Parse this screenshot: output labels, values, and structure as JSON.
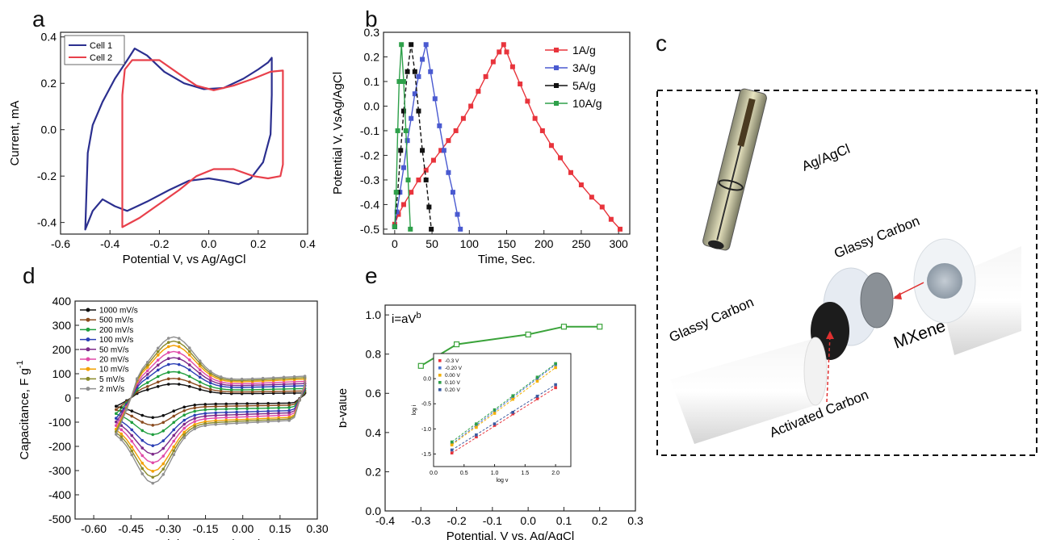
{
  "panel_letters": {
    "a": "a",
    "b": "b",
    "c": "c",
    "d": "d",
    "e": "e"
  },
  "chart_data": [
    {
      "panel": "a",
      "type": "line",
      "xlabel": "Potential V, vs Ag/AgCl",
      "ylabel": "Current, mA",
      "xlim": [
        -0.6,
        0.4
      ],
      "ylim": [
        -0.45,
        0.42
      ],
      "xticks": [
        -0.6,
        -0.4,
        -0.2,
        0.0,
        0.2,
        0.4
      ],
      "xtick_labels": [
        "-0.6",
        "-0.4",
        "-0.2",
        "0.0",
        "0.2",
        "0.4"
      ],
      "yticks": [
        -0.4,
        -0.2,
        0.0,
        0.2,
        0.4
      ],
      "ytick_labels": [
        "-0.4",
        "-0.2",
        "0.0",
        "0.2",
        "0.4"
      ],
      "legend_position": "top-left",
      "series": [
        {
          "name": "Cell 1",
          "color": "#2b2f8f",
          "points": [
            [
              -0.5,
              -0.43
            ],
            [
              -0.49,
              -0.1
            ],
            [
              -0.47,
              0.02
            ],
            [
              -0.43,
              0.12
            ],
            [
              -0.38,
              0.22
            ],
            [
              -0.33,
              0.3
            ],
            [
              -0.3,
              0.35
            ],
            [
              -0.25,
              0.32
            ],
            [
              -0.18,
              0.25
            ],
            [
              -0.1,
              0.2
            ],
            [
              -0.02,
              0.175
            ],
            [
              0.06,
              0.18
            ],
            [
              0.14,
              0.22
            ],
            [
              0.2,
              0.26
            ],
            [
              0.24,
              0.29
            ],
            [
              0.255,
              0.31
            ],
            [
              0.255,
              0.15
            ],
            [
              0.25,
              -0.02
            ],
            [
              0.22,
              -0.14
            ],
            [
              0.17,
              -0.21
            ],
            [
              0.12,
              -0.235
            ],
            [
              0.06,
              -0.22
            ],
            [
              0.0,
              -0.21
            ],
            [
              -0.08,
              -0.22
            ],
            [
              -0.16,
              -0.26
            ],
            [
              -0.25,
              -0.31
            ],
            [
              -0.33,
              -0.35
            ],
            [
              -0.38,
              -0.33
            ],
            [
              -0.43,
              -0.3
            ],
            [
              -0.47,
              -0.35
            ],
            [
              -0.5,
              -0.43
            ]
          ]
        },
        {
          "name": "Cell 2",
          "color": "#e8404b",
          "points": [
            [
              -0.35,
              -0.42
            ],
            [
              -0.35,
              -0.3
            ],
            [
              -0.35,
              0.0
            ],
            [
              -0.35,
              0.15
            ],
            [
              -0.34,
              0.26
            ],
            [
              -0.31,
              0.3
            ],
            [
              -0.2,
              0.3
            ],
            [
              -0.12,
              0.24
            ],
            [
              -0.05,
              0.19
            ],
            [
              0.02,
              0.17
            ],
            [
              0.1,
              0.19
            ],
            [
              0.18,
              0.22
            ],
            [
              0.25,
              0.25
            ],
            [
              0.3,
              0.255
            ],
            [
              0.3,
              0.1
            ],
            [
              0.3,
              -0.15
            ],
            [
              0.29,
              -0.2
            ],
            [
              0.24,
              -0.21
            ],
            [
              0.18,
              -0.2
            ],
            [
              0.1,
              -0.17
            ],
            [
              0.02,
              -0.17
            ],
            [
              -0.05,
              -0.2
            ],
            [
              -0.12,
              -0.26
            ],
            [
              -0.2,
              -0.32
            ],
            [
              -0.28,
              -0.38
            ],
            [
              -0.35,
              -0.42
            ]
          ]
        }
      ]
    },
    {
      "panel": "b",
      "type": "line",
      "xlabel": "Time, Sec.",
      "ylabel": "Potential V, VsAg/AgCl",
      "xlim": [
        -15,
        315
      ],
      "ylim": [
        -0.52,
        0.3
      ],
      "xticks": [
        0,
        50,
        100,
        150,
        200,
        250,
        300
      ],
      "xtick_labels": [
        "0",
        "50",
        "100",
        "150",
        "200",
        "250",
        "300"
      ],
      "yticks": [
        -0.5,
        -0.4,
        -0.3,
        -0.2,
        -0.1,
        0.0,
        0.1,
        0.2,
        0.3
      ],
      "ytick_labels": [
        "-0.5",
        "-0.4",
        "-0.3",
        "-0.2",
        "-0.1",
        "0.0",
        "0.1",
        "0.2",
        "0.3"
      ],
      "legend_position": "top-right",
      "series": [
        {
          "name": "1A/g",
          "color": "#e8343c",
          "points": [
            [
              0,
              -0.48
            ],
            [
              5,
              -0.44
            ],
            [
              12,
              -0.4
            ],
            [
              22,
              -0.35
            ],
            [
              32,
              -0.3
            ],
            [
              42,
              -0.26
            ],
            [
              52,
              -0.22
            ],
            [
              62,
              -0.18
            ],
            [
              72,
              -0.14
            ],
            [
              82,
              -0.1
            ],
            [
              92,
              -0.05
            ],
            [
              102,
              0.0
            ],
            [
              112,
              0.06
            ],
            [
              122,
              0.12
            ],
            [
              132,
              0.18
            ],
            [
              140,
              0.22
            ],
            [
              146,
              0.25
            ],
            [
              150,
              0.22
            ],
            [
              158,
              0.16
            ],
            [
              168,
              0.09
            ],
            [
              178,
              0.02
            ],
            [
              188,
              -0.05
            ],
            [
              198,
              -0.1
            ],
            [
              210,
              -0.16
            ],
            [
              222,
              -0.21
            ],
            [
              236,
              -0.27
            ],
            [
              250,
              -0.32
            ],
            [
              264,
              -0.37
            ],
            [
              278,
              -0.41
            ],
            [
              290,
              -0.46
            ],
            [
              302,
              -0.5
            ]
          ]
        },
        {
          "name": "3A/g",
          "color": "#4a5ad0",
          "points": [
            [
              0,
              -0.49
            ],
            [
              3,
              -0.43
            ],
            [
              7,
              -0.35
            ],
            [
              12,
              -0.25
            ],
            [
              17,
              -0.14
            ],
            [
              22,
              -0.05
            ],
            [
              27,
              0.05
            ],
            [
              32,
              0.12
            ],
            [
              37,
              0.19
            ],
            [
              42,
              0.25
            ],
            [
              48,
              0.14
            ],
            [
              54,
              0.03
            ],
            [
              60,
              -0.08
            ],
            [
              66,
              -0.18
            ],
            [
              72,
              -0.27
            ],
            [
              78,
              -0.35
            ],
            [
              84,
              -0.44
            ],
            [
              88,
              -0.5
            ]
          ]
        },
        {
          "name": "5A/g",
          "color": "#111111",
          "points": [
            [
              0,
              -0.49
            ],
            [
              4,
              -0.35
            ],
            [
              8,
              -0.18
            ],
            [
              12,
              -0.02
            ],
            [
              17,
              0.14
            ],
            [
              22,
              0.25
            ],
            [
              27,
              0.14
            ],
            [
              32,
              -0.02
            ],
            [
              37,
              -0.18
            ],
            [
              42,
              -0.3
            ],
            [
              46,
              -0.41
            ],
            [
              49,
              -0.5
            ]
          ]
        },
        {
          "name": "10A/g",
          "color": "#2ea04a",
          "points": [
            [
              0,
              -0.49
            ],
            [
              2,
              -0.35
            ],
            [
              4,
              -0.1
            ],
            [
              6,
              0.1
            ],
            [
              9,
              0.25
            ],
            [
              12,
              0.1
            ],
            [
              15,
              -0.1
            ],
            [
              18,
              -0.3
            ],
            [
              21,
              -0.5
            ]
          ]
        }
      ]
    },
    {
      "panel": "d",
      "type": "line",
      "xlabel": "Potential, V vs. Ag/AgCl",
      "ylabel": "Capacitance, F g",
      "ylabel_superscript": "-1",
      "xlim": [
        -0.675,
        0.3
      ],
      "ylim": [
        -500,
        400
      ],
      "xticks": [
        -0.6,
        -0.45,
        -0.3,
        -0.15,
        0.0,
        0.15,
        0.3
      ],
      "xtick_labels": [
        "-0.60",
        "-0.45",
        "-0.30",
        "-0.15",
        "0.00",
        "0.15",
        "0.30"
      ],
      "yticks": [
        -500,
        -400,
        -300,
        -200,
        -100,
        0,
        100,
        200,
        300,
        400
      ],
      "ytick_labels": [
        "-500",
        "-400",
        "-300",
        "-200",
        "-100",
        "0",
        "100",
        "200",
        "300",
        "400"
      ],
      "legend_position": "top-left",
      "series": [
        {
          "name": "1000 mV/s",
          "color": "#111111",
          "scale": 0.23
        },
        {
          "name": "500 mV/s",
          "color": "#8a4b1e",
          "scale": 0.32
        },
        {
          "name": "200 mV/s",
          "color": "#1f9e3e",
          "scale": 0.43
        },
        {
          "name": "100 mV/s",
          "color": "#2b3fb5",
          "scale": 0.56
        },
        {
          "name": "50 mV/s",
          "color": "#7d2a8a",
          "scale": 0.66
        },
        {
          "name": "20 mV/s",
          "color": "#e04ba8",
          "scale": 0.76
        },
        {
          "name": "10 mV/s",
          "color": "#f3a000",
          "scale": 0.86
        },
        {
          "name": "5 mV/s",
          "color": "#8a8a2a",
          "scale": 0.93
        },
        {
          "name": "2 mV/s",
          "color": "#909090",
          "scale": 1.0
        }
      ]
    },
    {
      "panel": "e",
      "type": "line",
      "xlabel": "Potential, V vs. Ag/AgCl",
      "ylabel": "b-value",
      "annotation_base": "i=aV",
      "annotation_superscript": "b",
      "xlim": [
        -0.4,
        0.3
      ],
      "ylim": [
        0.0,
        1.05
      ],
      "xticks": [
        -0.4,
        -0.3,
        -0.2,
        -0.1,
        0.0,
        0.1,
        0.2,
        0.3
      ],
      "xtick_labels": [
        "-0.4",
        "-0.3",
        "-0.2",
        "-0.1",
        "0.0",
        "0.1",
        "0.2",
        "0.3"
      ],
      "yticks": [
        0.0,
        0.2,
        0.4,
        0.6,
        0.8,
        1.0
      ],
      "ytick_labels": [
        "0.0",
        "0.2",
        "0.4",
        "0.6",
        "0.8",
        "1.0"
      ],
      "series": [
        {
          "name": "",
          "color": "#3aa33a",
          "points": [
            [
              -0.3,
              0.74
            ],
            [
              -0.2,
              0.85
            ],
            [
              0.0,
              0.9
            ],
            [
              0.1,
              0.94
            ],
            [
              0.2,
              0.94
            ]
          ]
        }
      ],
      "inset": {
        "type": "scatter",
        "xlabel": "log v",
        "ylabel": "log i",
        "xlim": [
          0.0,
          2.25
        ],
        "ylim": [
          -1.75,
          0.5
        ],
        "xticks": [
          0.0,
          0.5,
          1.0,
          1.5,
          2.0
        ],
        "xtick_labels": [
          "0.0",
          "0.5",
          "1.0",
          "1.5",
          "2.0"
        ],
        "yticks": [
          -1.5,
          -1.0,
          -0.5,
          0.0
        ],
        "ytick_labels": [
          "-1.5",
          "-1.0",
          "-0.5",
          "0.0"
        ],
        "legend_position": "top-left",
        "x": [
          0.3,
          0.7,
          1.0,
          1.3,
          1.7,
          2.0
        ],
        "series": [
          {
            "name": "-0.3 V",
            "color": "#e8343c",
            "values": [
              -1.48,
              -1.16,
              -0.93,
              -0.7,
              -0.4,
              -0.18
            ]
          },
          {
            "name": "-0.20 V",
            "color": "#4a6fd0",
            "values": [
              -1.3,
              -0.94,
              -0.65,
              -0.37,
              0.0,
              0.28
            ]
          },
          {
            "name": "0.00 V",
            "color": "#f3b000",
            "values": [
              -1.32,
              -0.97,
              -0.69,
              -0.41,
              -0.05,
              0.22
            ]
          },
          {
            "name": "0.10 V",
            "color": "#2ea04a",
            "values": [
              -1.26,
              -0.9,
              -0.62,
              -0.34,
              0.03,
              0.3
            ]
          },
          {
            "name": "0.20 V",
            "color": "#3a5aa0",
            "values": [
              -1.42,
              -1.12,
              -0.9,
              -0.67,
              -0.35,
              -0.12
            ]
          }
        ]
      }
    }
  ],
  "panel_c": {
    "labels": {
      "ag_agcl": "Ag/AgCl",
      "glassy_carbon_right": "Glassy Carbon",
      "glassy_carbon_left": "Glassy Carbon",
      "mxene": "MXene",
      "activated_carbon": "Activated Carbon"
    }
  }
}
